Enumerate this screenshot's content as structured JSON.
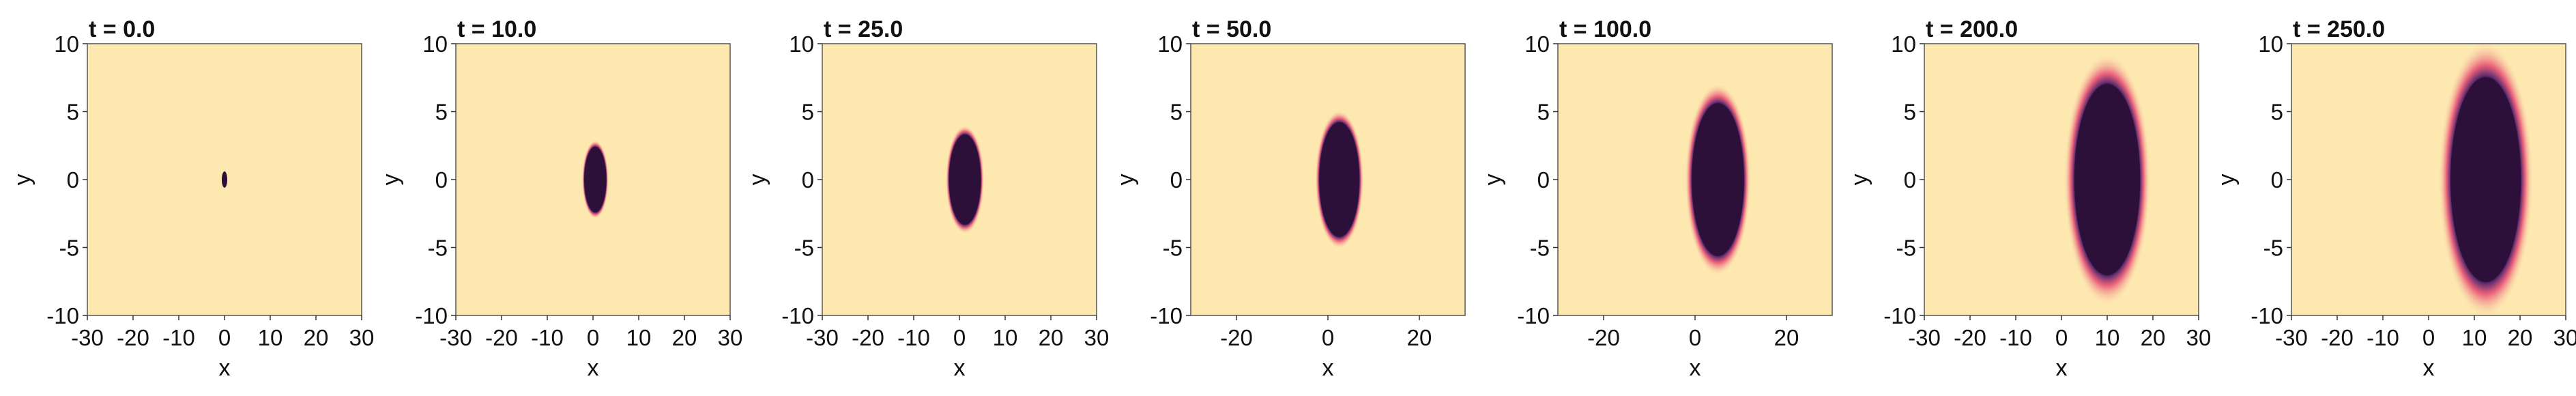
{
  "chart_data": [
    {
      "type": "heatmap",
      "title": "t = 0.0",
      "xlabel": "x",
      "ylabel": "y",
      "xlim": [
        -30,
        30
      ],
      "ylim": [
        -10,
        10
      ],
      "xticks": [
        -30,
        -20,
        -10,
        0,
        10,
        20,
        30
      ],
      "xtick_labels": [
        "-30",
        "-20",
        "-10",
        "0",
        "10",
        "20",
        "30"
      ],
      "yticks": [
        -10,
        -5,
        0,
        5,
        10
      ],
      "ytick_labels": [
        "-10",
        "-5",
        "0",
        "5",
        "10"
      ],
      "colors": {
        "background": "#fde9b0",
        "core": "#2d1039",
        "halo": "#e64a72"
      },
      "region": {
        "center_x": 0.0,
        "center_y": 0.0,
        "semi_axis_x": 0.6,
        "semi_axis_y": 0.6,
        "halo_width": 0.0
      }
    },
    {
      "type": "heatmap",
      "title": "t = 10.0",
      "xlabel": "x",
      "ylabel": "y",
      "xlim": [
        -30,
        30
      ],
      "ylim": [
        -10,
        10
      ],
      "xticks": [
        -30,
        -20,
        -10,
        0,
        10,
        20,
        30
      ],
      "xtick_labels": [
        "-30",
        "-20",
        "-10",
        "0",
        "10",
        "20",
        "30"
      ],
      "yticks": [
        -10,
        -5,
        0,
        5,
        10
      ],
      "ytick_labels": [
        "-10",
        "-5",
        "0",
        "5",
        "10"
      ],
      "colors": {
        "background": "#fde9b0",
        "core": "#2d1039",
        "halo": "#e64a72"
      },
      "region": {
        "center_x": 0.5,
        "center_y": 0.0,
        "semi_axis_x": 2.2,
        "semi_axis_y": 2.4,
        "halo_width": 0.4
      }
    },
    {
      "type": "heatmap",
      "title": "t = 25.0",
      "xlabel": "x",
      "ylabel": "y",
      "xlim": [
        -30,
        30
      ],
      "ylim": [
        -10,
        10
      ],
      "xticks": [
        -30,
        -20,
        -10,
        0,
        10,
        20,
        30
      ],
      "xtick_labels": [
        "-30",
        "-20",
        "-10",
        "0",
        "10",
        "20",
        "30"
      ],
      "yticks": [
        -10,
        -5,
        0,
        5,
        10
      ],
      "ytick_labels": [
        "-10",
        "-5",
        "0",
        "5",
        "10"
      ],
      "colors": {
        "background": "#fde9b0",
        "core": "#2d1039",
        "halo": "#e64a72"
      },
      "region": {
        "center_x": 1.2,
        "center_y": 0.0,
        "semi_axis_x": 3.3,
        "semi_axis_y": 3.3,
        "halo_width": 0.6
      }
    },
    {
      "type": "heatmap",
      "title": "t = 50.0",
      "xlabel": "x",
      "ylabel": "y",
      "xlim": [
        -30,
        30
      ],
      "ylim": [
        -10,
        10
      ],
      "xticks": [
        -20,
        0,
        20
      ],
      "xtick_labels": [
        "-20",
        "0",
        "20"
      ],
      "yticks": [
        -10,
        -5,
        0,
        5,
        10
      ],
      "ytick_labels": [
        "-10",
        "-5",
        "0",
        "5",
        "10"
      ],
      "colors": {
        "background": "#fde9b0",
        "core": "#2d1039",
        "halo": "#e64a72"
      },
      "region": {
        "center_x": 2.5,
        "center_y": 0.0,
        "semi_axis_x": 4.2,
        "semi_axis_y": 4.2,
        "halo_width": 0.8
      }
    },
    {
      "type": "heatmap",
      "title": "t = 100.0",
      "xlabel": "x",
      "ylabel": "y",
      "xlim": [
        -30,
        30
      ],
      "ylim": [
        -10,
        10
      ],
      "xticks": [
        -20,
        0,
        20
      ],
      "xtick_labels": [
        "-20",
        "0",
        "20"
      ],
      "yticks": [
        -10,
        -5,
        0,
        5,
        10
      ],
      "ytick_labels": [
        "-10",
        "-5",
        "0",
        "5",
        "10"
      ],
      "colors": {
        "background": "#fde9b0",
        "core": "#2d1039",
        "halo": "#e64a72"
      },
      "region": {
        "center_x": 5.0,
        "center_y": 0.0,
        "semi_axis_x": 5.5,
        "semi_axis_y": 5.6,
        "halo_width": 1.4
      }
    },
    {
      "type": "heatmap",
      "title": "t = 200.0",
      "xlabel": "x",
      "ylabel": "y",
      "xlim": [
        -30,
        30
      ],
      "ylim": [
        -10,
        10
      ],
      "xticks": [
        -30,
        -20,
        -10,
        0,
        10,
        20,
        30
      ],
      "xtick_labels": [
        "-30",
        "-20",
        "-10",
        "0",
        "10",
        "20",
        "30"
      ],
      "yticks": [
        -10,
        -5,
        0,
        5,
        10
      ],
      "ytick_labels": [
        "-10",
        "-5",
        "0",
        "5",
        "10"
      ],
      "colors": {
        "background": "#fde9b0",
        "core": "#2d1039",
        "halo": "#e64a72"
      },
      "region": {
        "center_x": 10.0,
        "center_y": 0.0,
        "semi_axis_x": 7.0,
        "semi_axis_y": 7.0,
        "halo_width": 2.2
      }
    },
    {
      "type": "heatmap",
      "title": "t = 250.0",
      "xlabel": "x",
      "ylabel": "y",
      "xlim": [
        -30,
        30
      ],
      "ylim": [
        -10,
        10
      ],
      "xticks": [
        -30,
        -20,
        -10,
        0,
        10,
        20,
        30
      ],
      "xtick_labels": [
        "-30",
        "-20",
        "-10",
        "0",
        "10",
        "20",
        "30"
      ],
      "yticks": [
        -10,
        -5,
        0,
        5,
        10
      ],
      "ytick_labels": [
        "-10",
        "-5",
        "0",
        "5",
        "10"
      ],
      "colors": {
        "background": "#fde9b0",
        "core": "#2d1039",
        "halo": "#e64a72"
      },
      "region": {
        "center_x": 12.5,
        "center_y": 0.0,
        "semi_axis_x": 7.5,
        "semi_axis_y": 7.5,
        "halo_width": 2.6
      }
    }
  ]
}
